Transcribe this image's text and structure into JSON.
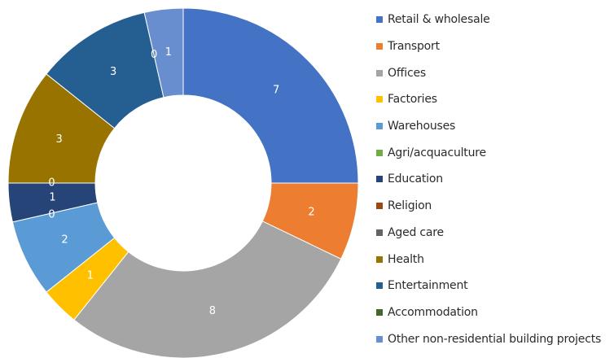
{
  "chart_data": {
    "type": "pie",
    "donut": true,
    "title": "",
    "legend_position": "right",
    "categories": [
      "Retail & wholesale",
      "Transport",
      "Offices",
      "Factories",
      "Warehouses",
      "Agri/acquaculture",
      "Education",
      "Religion",
      "Aged care",
      "Health",
      "Entertainment",
      "Accommodation",
      "Other non-residential building projects"
    ],
    "values": [
      7,
      2,
      8,
      1,
      2,
      0,
      1,
      0,
      0,
      3,
      3,
      0,
      1
    ],
    "data_labels": [
      "7",
      "2",
      "8",
      "1",
      "2",
      "",
      "1",
      "0",
      "0",
      "3",
      "3",
      "0",
      "1"
    ],
    "colors": [
      "#4472C4",
      "#ED7D31",
      "#A5A5A5",
      "#FFC000",
      "#5B9BD5",
      "#70AD47",
      "#264478",
      "#9E480E",
      "#636363",
      "#997300",
      "#255E91",
      "#43682B",
      "#698ED0"
    ]
  }
}
